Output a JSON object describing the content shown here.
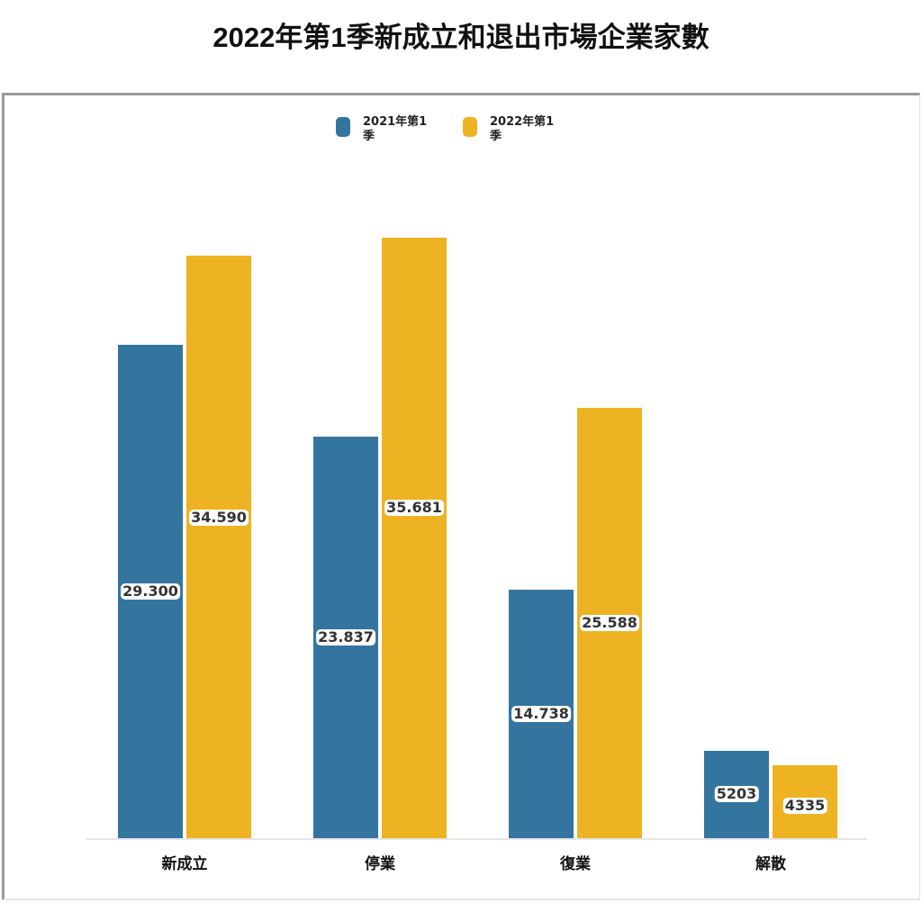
{
  "title": "2022年第1季新成立和退出市場企業家數",
  "legend": [
    {
      "label": "2021年第1季",
      "color": "#33759e"
    },
    {
      "label": "2022年第1季",
      "color": "#edb322"
    }
  ],
  "categories": [
    {
      "label": "新成立",
      "v2021": "29.300",
      "v2022": "34.590"
    },
    {
      "label": "停業",
      "v2021": "23.837",
      "v2022": "35.681"
    },
    {
      "label": "復業",
      "v2021": "14.738",
      "v2022": "25.588"
    },
    {
      "label": "解散",
      "v2021": "5203",
      "v2022": "4335"
    }
  ],
  "chart_data": {
    "type": "bar",
    "title": "2022年第1季新成立和退出市場企業家數",
    "categories": [
      "新成立",
      "停業",
      "復業",
      "解散"
    ],
    "series": [
      {
        "name": "2021年第1季",
        "color": "#33759e",
        "values": [
          29300,
          23837,
          14738,
          5203
        ]
      },
      {
        "name": "2022年第1季",
        "color": "#edb322",
        "values": [
          34590,
          35681,
          25588,
          4335
        ]
      }
    ],
    "data_labels": {
      "2021年第1季": [
        "29.300",
        "23.837",
        "14.738",
        "5203"
      ],
      "2022年第1季": [
        "34.590",
        "35.681",
        "25.588",
        "4335"
      ]
    },
    "xlabel": "",
    "ylabel": "",
    "ylim": [
      0,
      36000
    ],
    "grid": false,
    "legend_position": "top"
  }
}
